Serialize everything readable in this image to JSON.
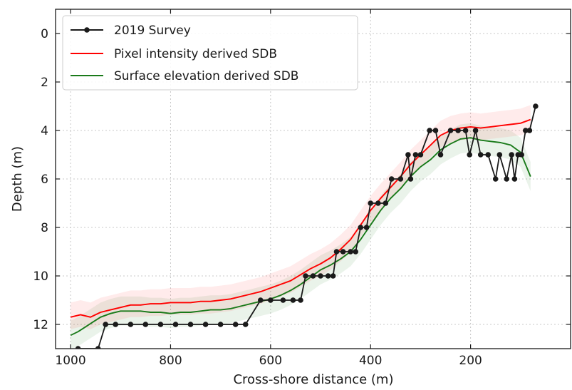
{
  "chart_data": {
    "type": "line",
    "xlabel": "Cross-shore distance (m)",
    "ylabel": "Depth (m)",
    "xlim": [
      1030,
      0
    ],
    "ylim": [
      -1,
      13
    ],
    "x_axis_direction": "reversed",
    "y_axis_direction": "inverted",
    "x_ticks": [
      1000,
      800,
      600,
      400,
      200
    ],
    "y_ticks": [
      0,
      2,
      4,
      6,
      8,
      10,
      12
    ],
    "grid": true,
    "legend_position": "top-left",
    "series": [
      {
        "name": "2019 Survey",
        "color": "#1a1a1a",
        "marker": "circle",
        "points": [
          [
            985,
            13
          ],
          [
            945,
            13
          ],
          [
            930,
            12
          ],
          [
            910,
            12
          ],
          [
            880,
            12
          ],
          [
            850,
            12
          ],
          [
            820,
            12
          ],
          [
            790,
            12
          ],
          [
            760,
            12
          ],
          [
            730,
            12
          ],
          [
            700,
            12
          ],
          [
            670,
            12
          ],
          [
            650,
            12
          ],
          [
            620,
            11
          ],
          [
            600,
            11
          ],
          [
            575,
            11
          ],
          [
            555,
            11
          ],
          [
            540,
            11
          ],
          [
            530,
            10
          ],
          [
            515,
            10
          ],
          [
            500,
            10
          ],
          [
            485,
            10
          ],
          [
            475,
            10
          ],
          [
            468,
            9
          ],
          [
            455,
            9
          ],
          [
            440,
            9
          ],
          [
            430,
            9
          ],
          [
            420,
            8
          ],
          [
            408,
            8
          ],
          [
            400,
            7
          ],
          [
            385,
            7
          ],
          [
            370,
            7
          ],
          [
            358,
            6
          ],
          [
            340,
            6
          ],
          [
            325,
            5
          ],
          [
            320,
            6
          ],
          [
            310,
            5
          ],
          [
            300,
            5
          ],
          [
            282,
            4
          ],
          [
            270,
            4
          ],
          [
            260,
            5
          ],
          [
            240,
            4
          ],
          [
            225,
            4
          ],
          [
            210,
            4
          ],
          [
            202,
            5
          ],
          [
            190,
            4
          ],
          [
            180,
            5
          ],
          [
            165,
            5
          ],
          [
            150,
            6
          ],
          [
            142,
            5
          ],
          [
            128,
            6
          ],
          [
            118,
            5
          ],
          [
            112,
            6
          ],
          [
            105,
            5
          ],
          [
            98,
            5
          ],
          [
            90,
            4
          ],
          [
            82,
            4
          ],
          [
            70,
            3
          ]
        ]
      },
      {
        "name": "Pixel intensity derived SDB",
        "color": "#ff0000",
        "marker": "none",
        "points": [
          [
            1000,
            11.7
          ],
          [
            980,
            11.6
          ],
          [
            960,
            11.7
          ],
          [
            940,
            11.5
          ],
          [
            920,
            11.4
          ],
          [
            900,
            11.3
          ],
          [
            880,
            11.2
          ],
          [
            860,
            11.2
          ],
          [
            840,
            11.15
          ],
          [
            820,
            11.15
          ],
          [
            800,
            11.1
          ],
          [
            780,
            11.1
          ],
          [
            760,
            11.1
          ],
          [
            740,
            11.05
          ],
          [
            720,
            11.05
          ],
          [
            700,
            11.0
          ],
          [
            680,
            10.95
          ],
          [
            660,
            10.85
          ],
          [
            640,
            10.75
          ],
          [
            620,
            10.65
          ],
          [
            600,
            10.5
          ],
          [
            580,
            10.35
          ],
          [
            560,
            10.2
          ],
          [
            540,
            9.95
          ],
          [
            520,
            9.7
          ],
          [
            500,
            9.5
          ],
          [
            480,
            9.25
          ],
          [
            460,
            8.9
          ],
          [
            440,
            8.5
          ],
          [
            420,
            7.9
          ],
          [
            400,
            7.3
          ],
          [
            380,
            6.8
          ],
          [
            360,
            6.35
          ],
          [
            340,
            5.9
          ],
          [
            320,
            5.4
          ],
          [
            300,
            5.0
          ],
          [
            280,
            4.6
          ],
          [
            260,
            4.2
          ],
          [
            240,
            4.0
          ],
          [
            220,
            3.9
          ],
          [
            200,
            3.85
          ],
          [
            180,
            3.9
          ],
          [
            160,
            3.85
          ],
          [
            140,
            3.8
          ],
          [
            120,
            3.75
          ],
          [
            100,
            3.7
          ],
          [
            80,
            3.55
          ]
        ]
      },
      {
        "name": "Surface elevation derived SDB",
        "color": "#1a7a1a",
        "marker": "none",
        "points": [
          [
            1000,
            12.45
          ],
          [
            985,
            12.3
          ],
          [
            970,
            12.1
          ],
          [
            955,
            11.9
          ],
          [
            940,
            11.7
          ],
          [
            920,
            11.55
          ],
          [
            900,
            11.45
          ],
          [
            880,
            11.45
          ],
          [
            860,
            11.45
          ],
          [
            840,
            11.5
          ],
          [
            820,
            11.5
          ],
          [
            800,
            11.55
          ],
          [
            780,
            11.5
          ],
          [
            760,
            11.5
          ],
          [
            740,
            11.45
          ],
          [
            720,
            11.4
          ],
          [
            700,
            11.4
          ],
          [
            680,
            11.35
          ],
          [
            660,
            11.25
          ],
          [
            640,
            11.15
          ],
          [
            620,
            11.05
          ],
          [
            600,
            10.95
          ],
          [
            580,
            10.8
          ],
          [
            560,
            10.6
          ],
          [
            540,
            10.35
          ],
          [
            520,
            10.05
          ],
          [
            500,
            9.75
          ],
          [
            480,
            9.55
          ],
          [
            460,
            9.3
          ],
          [
            440,
            9.0
          ],
          [
            420,
            8.5
          ],
          [
            400,
            7.9
          ],
          [
            380,
            7.3
          ],
          [
            360,
            6.8
          ],
          [
            340,
            6.4
          ],
          [
            320,
            5.9
          ],
          [
            300,
            5.5
          ],
          [
            280,
            5.2
          ],
          [
            260,
            4.8
          ],
          [
            240,
            4.55
          ],
          [
            220,
            4.35
          ],
          [
            200,
            4.3
          ],
          [
            180,
            4.4
          ],
          [
            160,
            4.45
          ],
          [
            140,
            4.5
          ],
          [
            120,
            4.6
          ],
          [
            100,
            4.9
          ],
          [
            90,
            5.4
          ],
          [
            80,
            5.9
          ]
        ]
      }
    ]
  }
}
